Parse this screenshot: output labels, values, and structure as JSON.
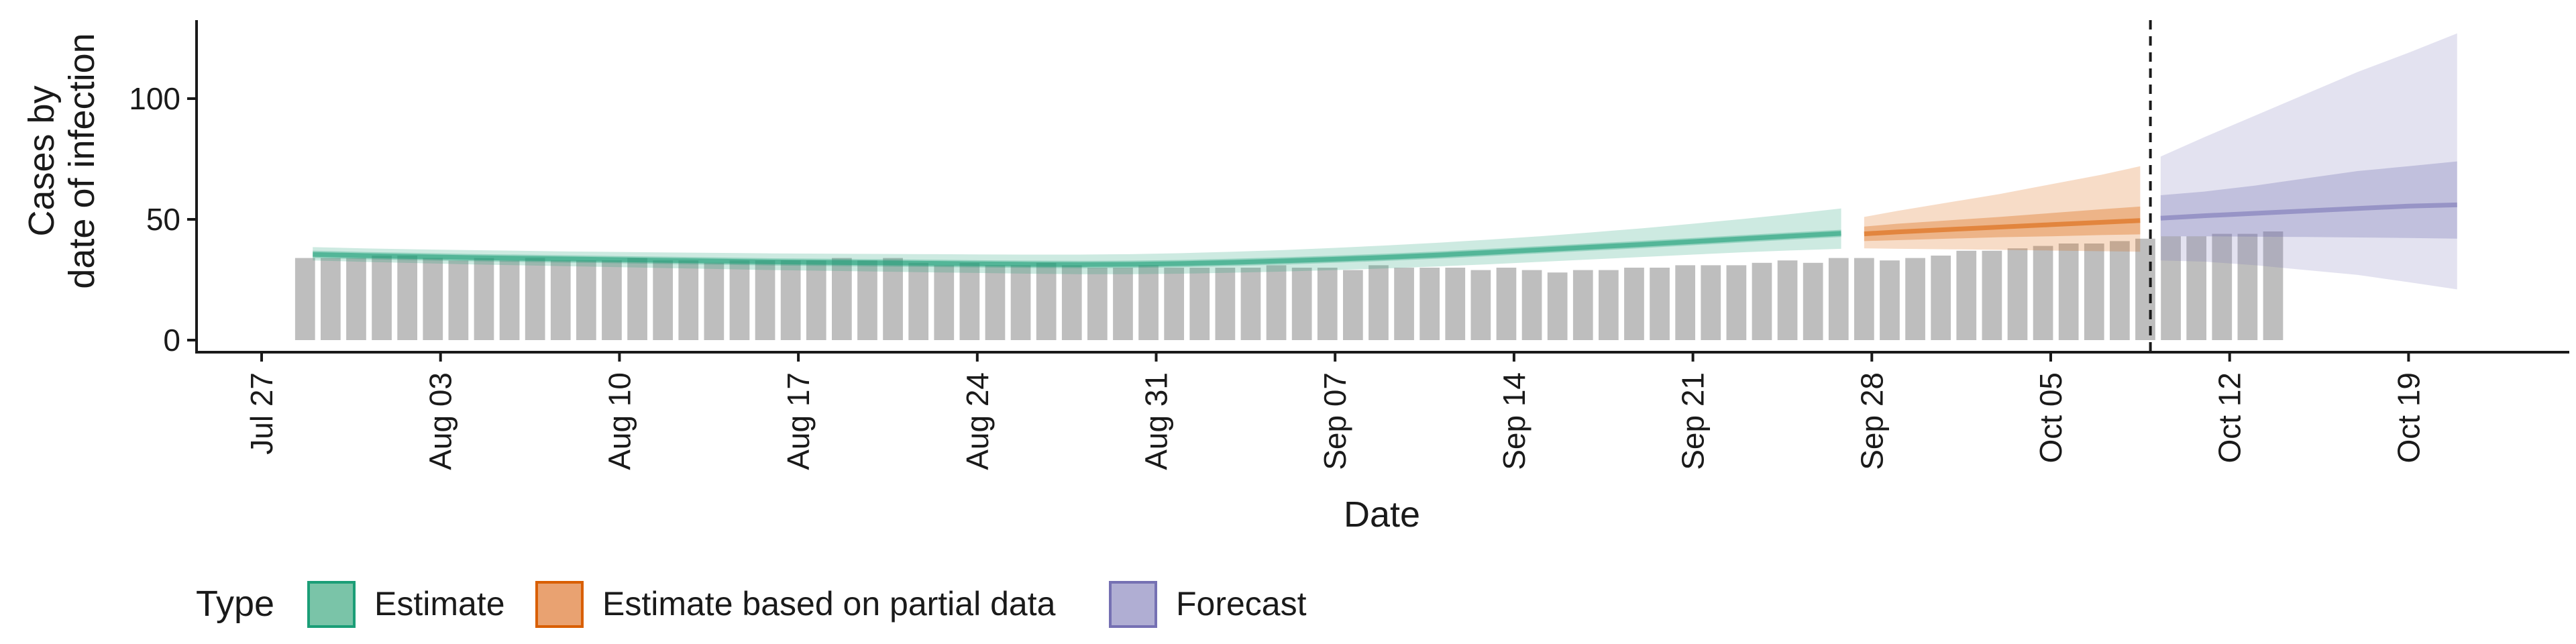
{
  "chart_data": {
    "type": "bar",
    "xlabel": "Date",
    "ylabel_line1": "Cases by",
    "ylabel_line2": "date of infection",
    "ylim": [
      0,
      130
    ],
    "y_ticks": [
      0,
      50,
      100
    ],
    "x_start_date": "2020-07-27",
    "x_ticks": [
      {
        "day": 0,
        "label": "Jul 27"
      },
      {
        "day": 7,
        "label": "Aug 03"
      },
      {
        "day": 14,
        "label": "Aug 10"
      },
      {
        "day": 21,
        "label": "Aug 17"
      },
      {
        "day": 28,
        "label": "Aug 24"
      },
      {
        "day": 35,
        "label": "Aug 31"
      },
      {
        "day": 42,
        "label": "Sep 07"
      },
      {
        "day": 49,
        "label": "Sep 14"
      },
      {
        "day": 56,
        "label": "Sep 21"
      },
      {
        "day": 63,
        "label": "Sep 28"
      },
      {
        "day": 70,
        "label": "Oct 05"
      },
      {
        "day": 77,
        "label": "Oct 12"
      },
      {
        "day": 84,
        "label": "Oct 19"
      }
    ],
    "reported_cases": {
      "start_day": 1.7,
      "values": [
        34,
        34,
        34,
        35,
        35,
        34,
        33,
        34,
        33,
        34,
        33,
        33,
        33,
        34,
        33,
        33,
        32,
        33,
        33,
        33,
        33,
        34,
        33,
        34,
        32,
        31,
        32,
        31,
        31,
        32,
        31,
        30,
        30,
        31,
        30,
        30,
        30,
        30,
        31,
        30,
        30,
        29,
        31,
        30,
        30,
        30,
        29,
        30,
        29,
        28,
        29,
        29,
        30,
        30,
        31,
        31,
        31,
        32,
        33,
        32,
        34,
        34,
        33,
        34,
        35,
        37,
        37,
        38,
        39,
        40,
        40,
        41,
        42,
        43,
        43,
        44,
        44,
        45
      ]
    },
    "estimate_days": [
      2,
      4,
      6,
      8,
      10,
      12,
      14,
      16,
      18,
      20,
      22,
      24,
      26,
      28,
      30,
      32,
      34,
      36,
      38,
      40,
      42,
      44,
      46,
      48,
      50,
      52,
      54,
      56,
      58,
      60,
      61.8
    ],
    "estimate_median": [
      35.5,
      35.0,
      34.6,
      34.2,
      33.9,
      33.6,
      33.3,
      33.0,
      32.7,
      32.4,
      32.2,
      32.0,
      31.8,
      31.6,
      31.4,
      31.3,
      31.4,
      31.7,
      32.2,
      32.8,
      33.5,
      34.3,
      35.2,
      36.3,
      37.4,
      38.5,
      39.6,
      40.8,
      42.0,
      43.2,
      44.2
    ],
    "estimate_inner_lower": [
      34.0,
      33.5,
      33.1,
      32.7,
      32.4,
      32.1,
      31.8,
      31.5,
      31.2,
      30.9,
      30.7,
      30.5,
      30.3,
      30.1,
      29.9,
      29.8,
      29.9,
      30.2,
      30.7,
      31.3,
      32.0,
      32.8,
      33.7,
      34.8,
      35.9,
      37.0,
      38.1,
      39.3,
      40.5,
      41.7,
      42.7
    ],
    "estimate_inner_upper": [
      37.0,
      36.5,
      36.1,
      35.7,
      35.4,
      35.1,
      34.8,
      34.5,
      34.2,
      33.9,
      33.7,
      33.5,
      33.3,
      33.1,
      32.9,
      32.8,
      32.9,
      33.2,
      33.7,
      34.3,
      35.0,
      35.8,
      36.7,
      37.8,
      38.9,
      40.0,
      41.1,
      42.3,
      43.5,
      44.7,
      45.7
    ],
    "estimate_outer_lower": [
      33.0,
      32.4,
      31.9,
      31.4,
      31.0,
      30.6,
      30.2,
      29.8,
      29.4,
      29.0,
      28.7,
      28.4,
      28.1,
      27.8,
      27.5,
      27.3,
      27.3,
      27.5,
      27.9,
      28.4,
      29.0,
      29.7,
      30.5,
      31.4,
      32.4,
      33.4,
      34.4,
      35.4,
      36.4,
      37.2,
      37.8
    ],
    "estimate_outer_upper": [
      38.5,
      38.0,
      37.6,
      37.3,
      37.0,
      36.7,
      36.5,
      36.3,
      36.1,
      35.9,
      35.8,
      35.7,
      35.6,
      35.5,
      35.4,
      35.4,
      35.6,
      36.0,
      36.6,
      37.3,
      38.2,
      39.2,
      40.3,
      41.6,
      43.0,
      44.6,
      46.3,
      48.2,
      50.2,
      52.4,
      54.5
    ],
    "partial_days": [
      62.7,
      64,
      66,
      68,
      70,
      72,
      73.5
    ],
    "partial_median": [
      44.0,
      44.8,
      45.8,
      46.8,
      47.8,
      48.8,
      49.5
    ],
    "partial_inner_lower": [
      41.0,
      41.4,
      42.0,
      42.6,
      43.0,
      43.5,
      43.8
    ],
    "partial_inner_upper": [
      47.0,
      48.2,
      49.6,
      51.0,
      52.6,
      54.2,
      55.3
    ],
    "partial_outer_lower": [
      38.0,
      37.8,
      37.6,
      37.4,
      37.1,
      36.8,
      36.6
    ],
    "partial_outer_upper": [
      51.0,
      53.5,
      57.0,
      60.5,
      64.5,
      68.5,
      72.0
    ],
    "forecast_days": [
      74.3,
      76,
      78,
      80,
      82,
      84,
      85.9
    ],
    "forecast_median": [
      50.5,
      51.5,
      52.5,
      53.5,
      54.5,
      55.5,
      56.0
    ],
    "forecast_inner_lower": [
      43.0,
      43.0,
      42.8,
      42.7,
      42.5,
      42.3,
      42.0
    ],
    "forecast_inner_upper": [
      60.0,
      61.5,
      64.0,
      67.0,
      70.0,
      72.0,
      74.0
    ],
    "forecast_outer_lower": [
      33.0,
      32.5,
      31.0,
      29.0,
      27.0,
      24.0,
      21.0
    ],
    "forecast_outer_upper": [
      76.0,
      84.0,
      93.0,
      102.0,
      111.0,
      119.0,
      127.0
    ],
    "vline_day": 73.9,
    "legend": {
      "position": "bottom-left",
      "title": "Type",
      "items": [
        {
          "label": "Estimate",
          "fill": "#7ac4a8",
          "border": "#1b9e77"
        },
        {
          "label": "Estimate based on partial data",
          "fill": "#e9a271",
          "border": "#d95f02"
        },
        {
          "label": "Forecast",
          "fill": "#b0aed3",
          "border": "#7570b3"
        }
      ]
    },
    "colors": {
      "bars": "#bebebe",
      "estimate": "#1b9e77",
      "partial": "#d95f02",
      "forecast": "#7570b3",
      "axis": "#1a1a1a"
    },
    "grid": false
  }
}
